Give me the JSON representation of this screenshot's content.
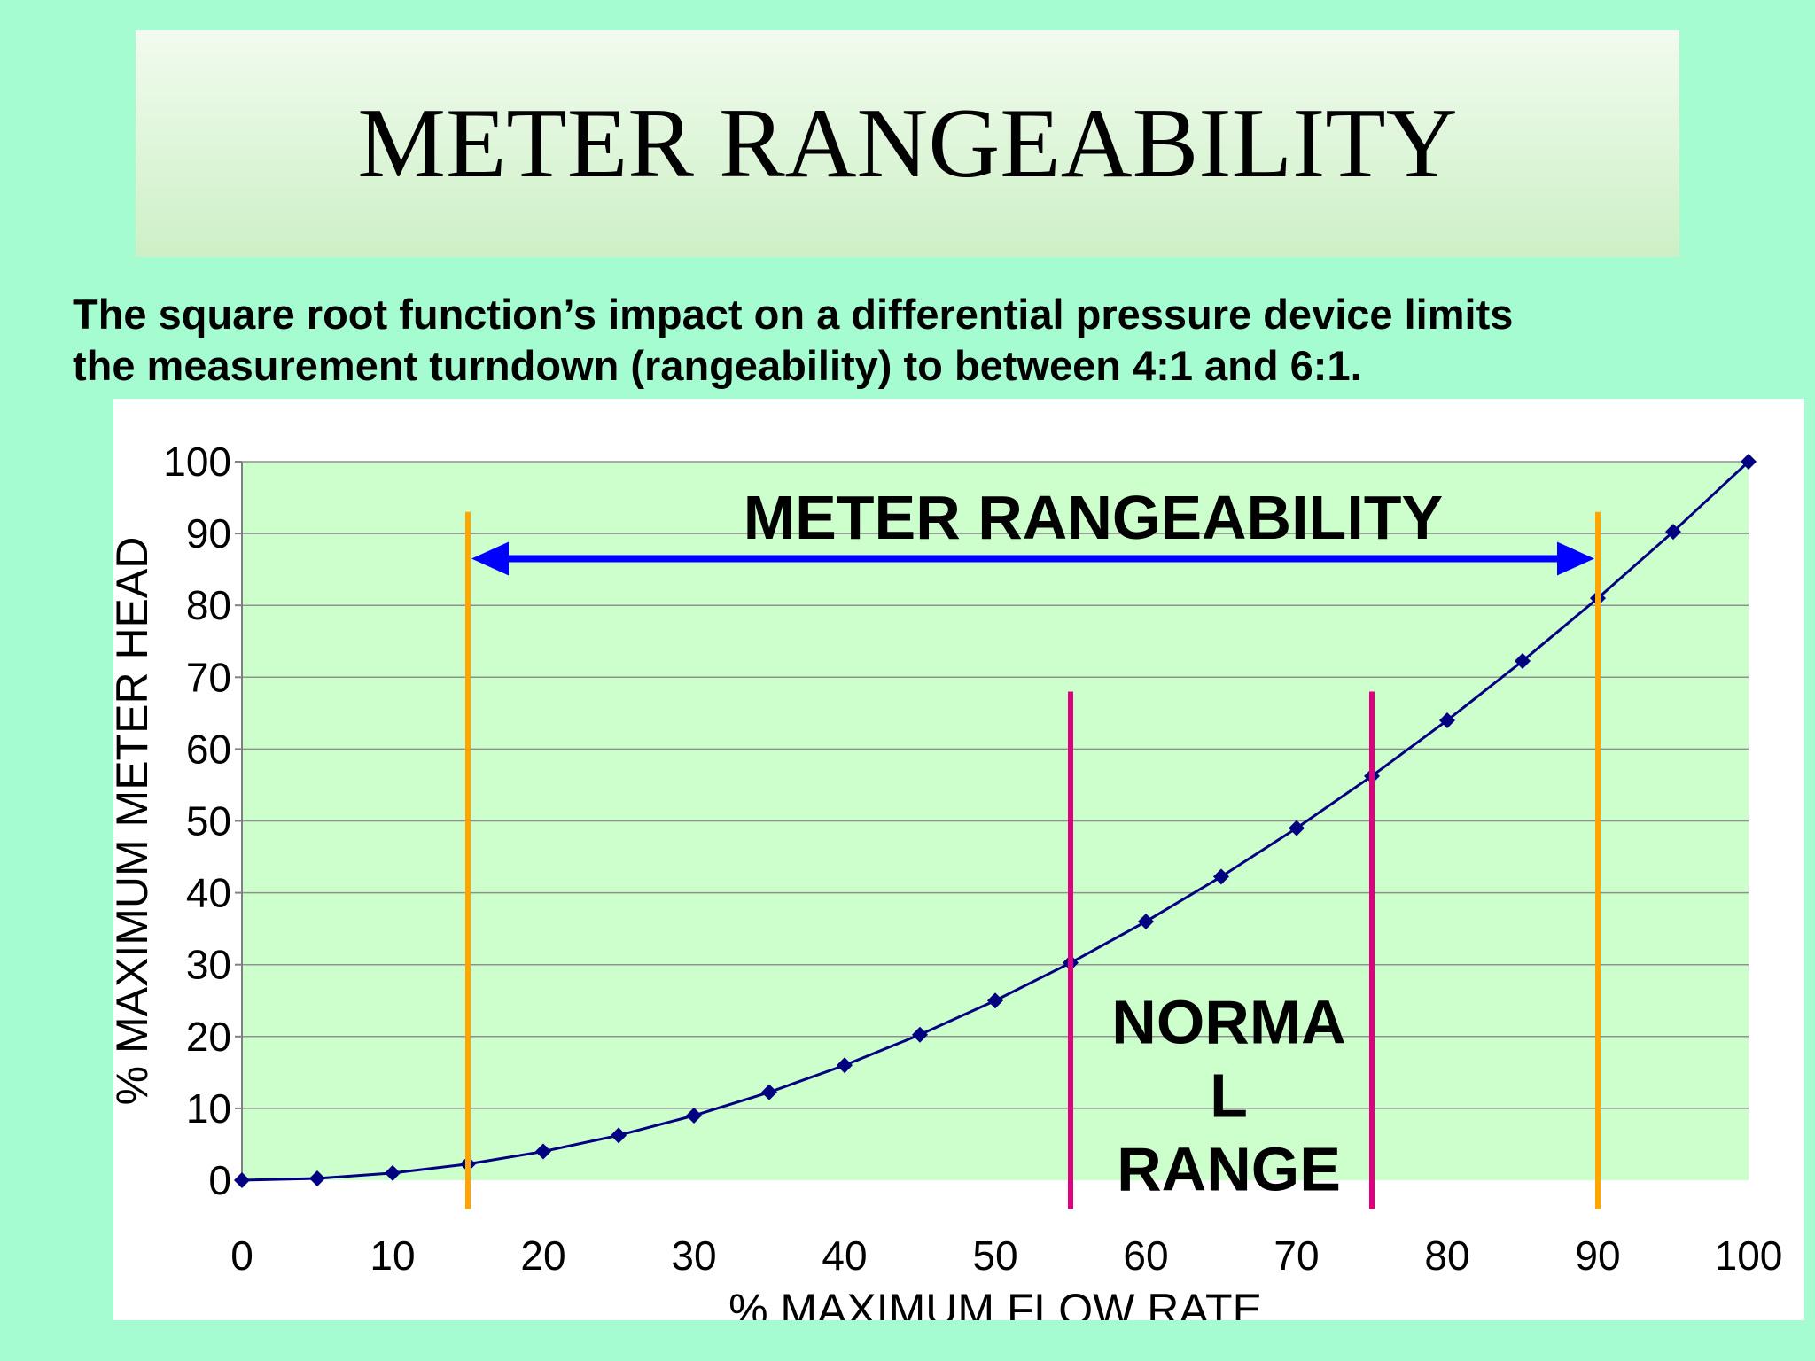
{
  "slide": {
    "title": "METER RANGEABILITY",
    "subtitle_lines": [
      "The square root function’s impact on a differential pressure device limits",
      "the measurement turndown (rangeability) to between 4:1 and 6:1."
    ]
  },
  "colors": {
    "background": "#a4fcd0",
    "plot_area": "#ccffcc",
    "series_line": "#000080",
    "rangeability_limits": "#ffa500",
    "normal_range_limits": "#e0007f",
    "rangeability_arrow": "#0000ff"
  },
  "chart_data": {
    "type": "line",
    "xlabel": "% MAXIMUM FLOW RATE",
    "ylabel": "% MAXIMUM METER HEAD",
    "xlim": [
      0,
      100
    ],
    "ylim": [
      0,
      100
    ],
    "x_ticks": [
      0,
      10,
      20,
      30,
      40,
      50,
      60,
      70,
      80,
      90,
      100
    ],
    "y_ticks": [
      0,
      10,
      20,
      30,
      40,
      50,
      60,
      70,
      80,
      90,
      100
    ],
    "grid": "horizontal",
    "legend": "none",
    "series": [
      {
        "x": [
          0,
          5,
          10,
          15,
          20,
          25,
          30,
          35,
          40,
          45,
          50,
          55,
          60,
          65,
          70,
          75,
          80,
          85,
          90,
          95,
          100
        ],
        "y": [
          0,
          0.25,
          1,
          2.25,
          4,
          6.25,
          9,
          12.25,
          16,
          20.25,
          25,
          30.25,
          36,
          42.25,
          49,
          56.25,
          64,
          72.25,
          81,
          90.25,
          100
        ],
        "marker": "diamond"
      }
    ],
    "vertical_lines": [
      {
        "x": 15,
        "y_from": -4,
        "y_to": 93,
        "group": "rangeability"
      },
      {
        "x": 90,
        "y_from": -4,
        "y_to": 93,
        "group": "rangeability"
      },
      {
        "x": 55,
        "y_from": -4,
        "y_to": 68,
        "group": "normal"
      },
      {
        "x": 75,
        "y_from": -4,
        "y_to": 68,
        "group": "normal"
      }
    ],
    "arrow": {
      "x_from": 15,
      "x_to": 90,
      "y": 86.5
    },
    "annotations": {
      "rangeability": {
        "text": "METER RANGEABILITY",
        "x": 56.5,
        "y": 92
      },
      "normal": {
        "lines": [
          "NORMA",
          "L",
          "RANGE"
        ],
        "x": 65.5,
        "y": 22
      }
    }
  }
}
